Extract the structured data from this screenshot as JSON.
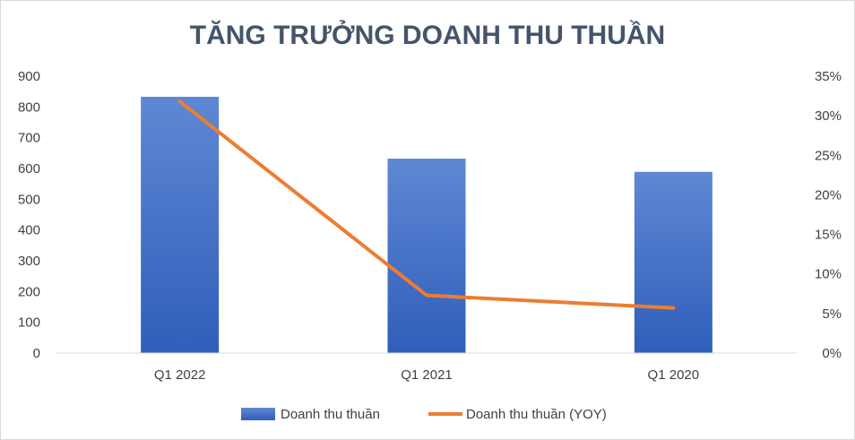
{
  "chart_data": {
    "type": "bar",
    "title": "TĂNG TRƯỞNG DOANH THU THUẦN",
    "categories": [
      "Q1 2022",
      "Q1 2021",
      "Q1 2020"
    ],
    "series": [
      {
        "name": "Doanh thu thuần",
        "type": "bar",
        "axis": "left",
        "color": "#4472c4",
        "values": [
          833,
          632,
          589
        ]
      },
      {
        "name": "Doanh thu thuần (YOY)",
        "type": "line",
        "axis": "right",
        "color": "#ed7d31",
        "values": [
          0.318,
          0.073,
          0.057
        ]
      }
    ],
    "y_left": {
      "min": 0,
      "max": 900,
      "step": 100,
      "tick_labels": [
        "0",
        "100",
        "200",
        "300",
        "400",
        "500",
        "600",
        "700",
        "800",
        "900"
      ]
    },
    "y_right": {
      "min": 0,
      "max": 0.35,
      "step": 0.05,
      "tick_labels": [
        "0%",
        "5%",
        "10%",
        "15%",
        "20%",
        "25%",
        "30%",
        "35%"
      ]
    },
    "grid": false,
    "legend_position": "bottom"
  }
}
